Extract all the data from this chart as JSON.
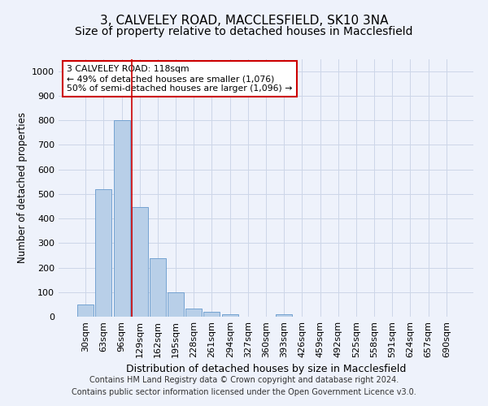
{
  "title": "3, CALVELEY ROAD, MACCLESFIELD, SK10 3NA",
  "subtitle": "Size of property relative to detached houses in Macclesfield",
  "xlabel": "Distribution of detached houses by size in Macclesfield",
  "ylabel": "Number of detached properties",
  "footer_line1": "Contains HM Land Registry data © Crown copyright and database right 2024.",
  "footer_line2": "Contains public sector information licensed under the Open Government Licence v3.0.",
  "bar_labels": [
    "30sqm",
    "63sqm",
    "96sqm",
    "129sqm",
    "162sqm",
    "195sqm",
    "228sqm",
    "261sqm",
    "294sqm",
    "327sqm",
    "360sqm",
    "393sqm",
    "426sqm",
    "459sqm",
    "492sqm",
    "525sqm",
    "558sqm",
    "591sqm",
    "624sqm",
    "657sqm",
    "690sqm"
  ],
  "bar_values": [
    50,
    520,
    800,
    445,
    238,
    98,
    33,
    20,
    10,
    0,
    0,
    10,
    0,
    0,
    0,
    0,
    0,
    0,
    0,
    0,
    0
  ],
  "bar_color": "#b8cfe8",
  "bar_edge_color": "#6699cc",
  "grid_color": "#ccd6e8",
  "vline_index": 2.57,
  "vline_color": "#cc0000",
  "annotation_text": "3 CALVELEY ROAD: 118sqm\n← 49% of detached houses are smaller (1,076)\n50% of semi-detached houses are larger (1,096) →",
  "ylim": [
    0,
    1050
  ],
  "yticks": [
    0,
    100,
    200,
    300,
    400,
    500,
    600,
    700,
    800,
    900,
    1000
  ],
  "background_color": "#eef2fb",
  "title_fontsize": 11,
  "subtitle_fontsize": 10,
  "xlabel_fontsize": 9,
  "ylabel_fontsize": 8.5,
  "tick_fontsize": 8,
  "footer_fontsize": 7
}
